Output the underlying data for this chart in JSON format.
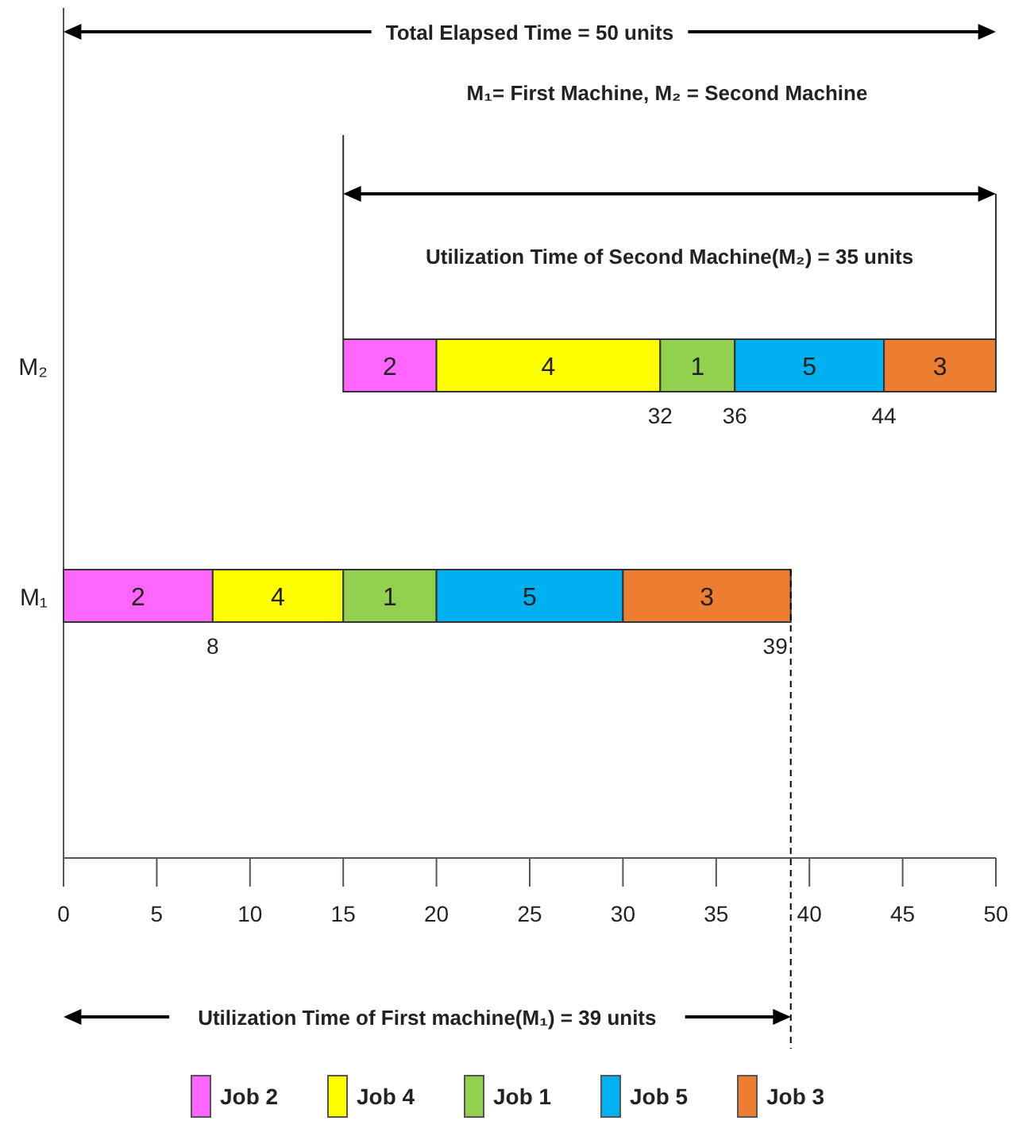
{
  "chart_data": {
    "type": "bar",
    "orientation": "horizontal",
    "categories": [
      "M₂",
      "M₁"
    ],
    "xlim": [
      0,
      50
    ],
    "xticks": [
      0,
      5,
      10,
      15,
      20,
      25,
      30,
      35,
      40,
      45,
      50
    ],
    "series": [
      {
        "name": "Job 2",
        "color": "#ff66ff",
        "values": [
          5,
          8
        ],
        "base": [
          15,
          0
        ]
      },
      {
        "name": "Job 4",
        "color": "#ffff00",
        "values": [
          12,
          7
        ],
        "base": [
          20,
          8
        ]
      },
      {
        "name": "Job 1",
        "color": "#92d050",
        "values": [
          4,
          5
        ],
        "base": [
          32,
          15
        ]
      },
      {
        "name": "Job 5",
        "color": "#00b0f0",
        "values": [
          8,
          10
        ],
        "base": [
          36,
          20
        ]
      },
      {
        "name": "Job 3",
        "color": "#ed7d31",
        "values": [
          6,
          9
        ],
        "base": [
          44,
          30
        ]
      }
    ],
    "legend": "bottom",
    "grid": false,
    "ref_lines": [
      {
        "axis": "x",
        "value": 39,
        "line_style": "dashed"
      }
    ],
    "annotations": [
      "Total Elapsed Time = 50 units",
      "M₁= First Machine, M₂ = Second Machine",
      "Utilization Time of Second Machine(M₂) = 35 units",
      "Utilization Time of First machine(M₁) = 39 units",
      "2",
      "4",
      "1",
      "5",
      "3",
      "2",
      "4",
      "1",
      "5",
      "3",
      {
        "text": "8",
        "x": 8,
        "y": "M₁"
      },
      {
        "text": "39",
        "x": 39,
        "y": "M₁"
      },
      {
        "text": "32",
        "x": 32,
        "y": "M₂"
      },
      {
        "text": "36",
        "x": 36,
        "y": "M₂"
      },
      {
        "text": "44",
        "x": 44,
        "y": "M₂"
      }
    ]
  }
}
